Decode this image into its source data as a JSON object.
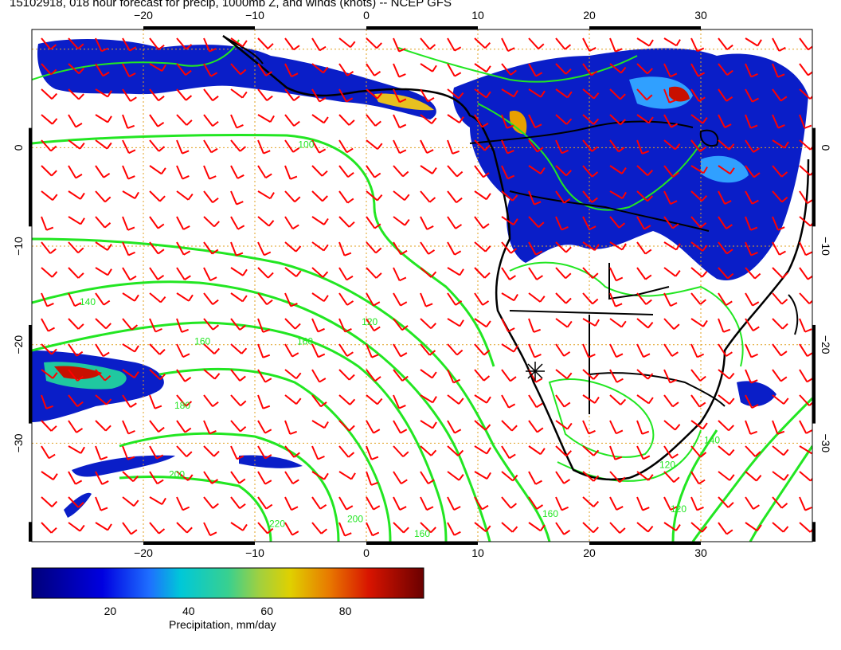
{
  "title": "15102918, 018 hour forecast for precip, 1000mb Z, and winds (knots) -- NCEP GFS",
  "map": {
    "lon_range": [
      -30,
      40
    ],
    "lat_range": [
      -40,
      12
    ],
    "lon_ticks": [
      -20,
      -10,
      0,
      10,
      20,
      30
    ],
    "lat_ticks": [
      0,
      -10,
      -20,
      -30
    ],
    "lon_tick_labels": [
      "−20",
      "−10",
      "0",
      "10",
      "20",
      "30"
    ],
    "lat_tick_labels": [
      "0",
      "−10",
      "−20",
      "−30"
    ],
    "contour_labels": [
      {
        "text": "100",
        "lon": -5.4,
        "lat": 0
      },
      {
        "text": "140",
        "lon": -25,
        "lat": -16
      },
      {
        "text": "160",
        "lon": -14.7,
        "lat": -20
      },
      {
        "text": "160",
        "lon": -5.5,
        "lat": -20
      },
      {
        "text": "120",
        "lon": 0.3,
        "lat": -18
      },
      {
        "text": "180",
        "lon": -16.5,
        "lat": -26.5
      },
      {
        "text": "200",
        "lon": -17,
        "lat": -33.5
      },
      {
        "text": "220",
        "lon": -8,
        "lat": -38.5
      },
      {
        "text": "200",
        "lon": -1,
        "lat": -38
      },
      {
        "text": "160",
        "lon": 5,
        "lat": -39.5
      },
      {
        "text": "160",
        "lon": 16.5,
        "lat": -37.5
      },
      {
        "text": "120",
        "lon": 28,
        "lat": -37
      },
      {
        "text": "140",
        "lon": 31,
        "lat": -30
      },
      {
        "text": "120",
        "lon": 27,
        "lat": -32.5
      }
    ]
  },
  "colorbar": {
    "ticks": [
      20,
      40,
      60,
      80
    ],
    "tick_labels": [
      "20",
      "40",
      "60",
      "80"
    ],
    "range": [
      0,
      100
    ],
    "label": "Precipitation, mm/day"
  }
}
